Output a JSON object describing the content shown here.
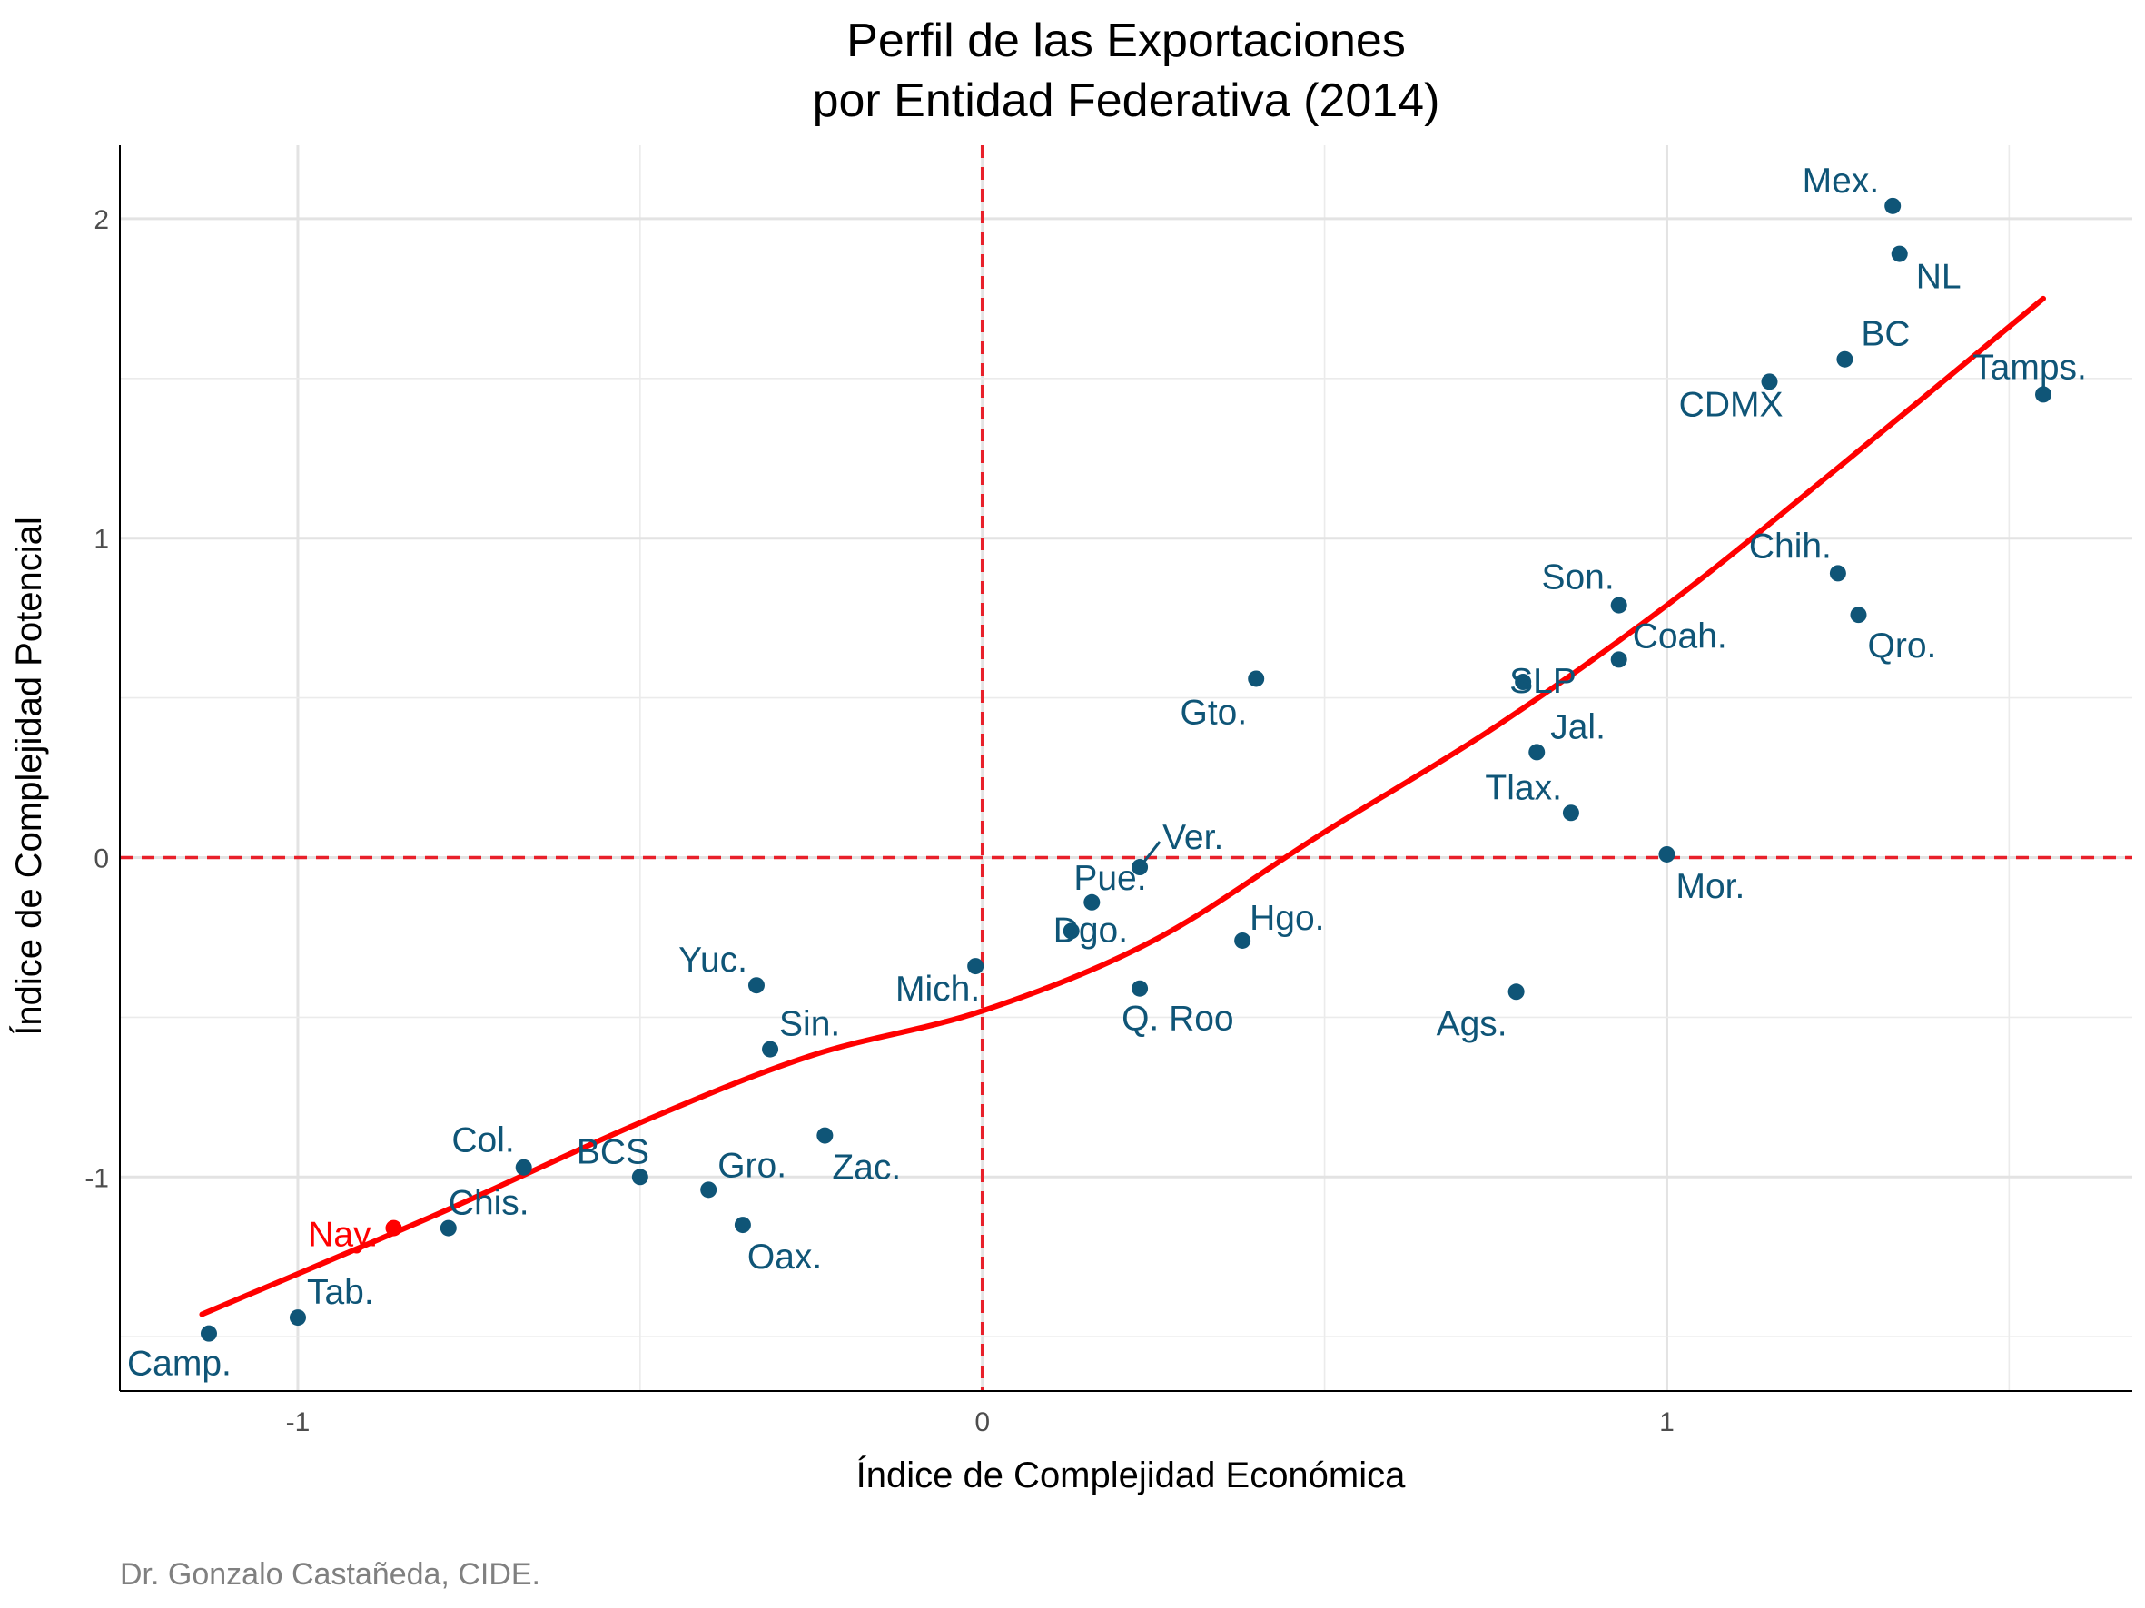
{
  "title_line1": "Perfil de las Exportaciones",
  "title_line2": "por Entidad Federativa (2014)",
  "caption": "Dr. Gonzalo Castañeda, CIDE.",
  "colors": {
    "point": "#0f5577",
    "highlight": "#ff0000",
    "fit": "#ff0000",
    "reference": "#e8202a"
  },
  "chart_data": {
    "type": "scatter",
    "xlabel": "Índice de Complejidad Económica",
    "ylabel": "Índice de Complejidad Potencial",
    "xlim": [
      -1.26,
      1.68
    ],
    "ylim": [
      -1.67,
      2.23
    ],
    "x_ticks": [
      -1,
      0,
      1
    ],
    "y_ticks": [
      -1,
      0,
      1,
      2
    ],
    "x_tick_labels": [
      "-1",
      "0",
      "1"
    ],
    "y_tick_labels": [
      "-1",
      "0",
      "1",
      "2"
    ],
    "reference_lines": {
      "x": 0,
      "y": 0
    },
    "fit_curve": {
      "x": [
        -1.14,
        -0.8,
        -0.5,
        -0.25,
        0,
        0.25,
        0.5,
        0.75,
        1.0,
        1.25,
        1.55
      ],
      "y": [
        -1.43,
        -1.12,
        -0.83,
        -0.62,
        -0.48,
        -0.26,
        0.08,
        0.41,
        0.79,
        1.22,
        1.75
      ]
    },
    "points": [
      {
        "label": "Mex.",
        "x": 1.33,
        "y": 2.04
      },
      {
        "label": "NL",
        "x": 1.34,
        "y": 1.89
      },
      {
        "label": "BC",
        "x": 1.26,
        "y": 1.56
      },
      {
        "label": "CDMX",
        "x": 1.15,
        "y": 1.49
      },
      {
        "label": "Tamps.",
        "x": 1.55,
        "y": 1.45
      },
      {
        "label": "Chih.",
        "x": 1.25,
        "y": 0.89
      },
      {
        "label": "Qro.",
        "x": 1.28,
        "y": 0.76
      },
      {
        "label": "Son.",
        "x": 0.93,
        "y": 0.79
      },
      {
        "label": "Coah.",
        "x": 0.93,
        "y": 0.62
      },
      {
        "label": "SLP",
        "x": 0.79,
        "y": 0.55
      },
      {
        "label": "Gto.",
        "x": 0.4,
        "y": 0.56
      },
      {
        "label": "Jal.",
        "x": 0.81,
        "y": 0.33
      },
      {
        "label": "Tlax.",
        "x": 0.86,
        "y": 0.14
      },
      {
        "label": "Mor.",
        "x": 1.0,
        "y": 0.01
      },
      {
        "label": "Ver.",
        "x": 0.23,
        "y": -0.03
      },
      {
        "label": "Pue.",
        "x": 0.16,
        "y": -0.14
      },
      {
        "label": "Dgo.",
        "x": 0.13,
        "y": -0.23
      },
      {
        "label": "Hgo.",
        "x": 0.38,
        "y": -0.26
      },
      {
        "label": "Mich.",
        "x": -0.01,
        "y": -0.34
      },
      {
        "label": "Q. Roo",
        "x": 0.23,
        "y": -0.41
      },
      {
        "label": "Ags.",
        "x": 0.78,
        "y": -0.42
      },
      {
        "label": "Yuc.",
        "x": -0.33,
        "y": -0.4
      },
      {
        "label": "Sin.",
        "x": -0.31,
        "y": -0.6
      },
      {
        "label": "Zac.",
        "x": -0.23,
        "y": -0.87
      },
      {
        "label": "Col.",
        "x": -0.67,
        "y": -0.97
      },
      {
        "label": "BCS",
        "x": -0.5,
        "y": -1.0
      },
      {
        "label": "Gro.",
        "x": -0.4,
        "y": -1.04
      },
      {
        "label": "Oax.",
        "x": -0.35,
        "y": -1.15
      },
      {
        "label": "Chis.",
        "x": -0.78,
        "y": -1.16
      },
      {
        "label": "Nay.",
        "x": -0.86,
        "y": -1.16,
        "highlight": true
      },
      {
        "label": "Tab.",
        "x": -1.0,
        "y": -1.44
      },
      {
        "label": "Camp.",
        "x": -1.13,
        "y": -1.49
      }
    ]
  }
}
